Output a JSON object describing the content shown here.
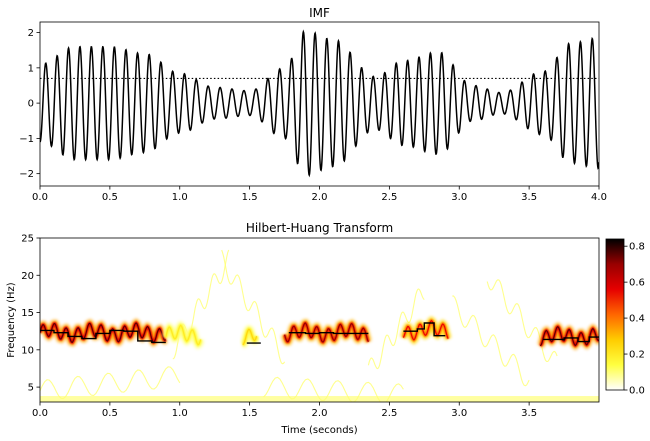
{
  "chart_data": [
    {
      "type": "line",
      "title": "IMF",
      "xlabel": "",
      "ylabel": "",
      "xlim": [
        0.0,
        4.0
      ],
      "ylim": [
        -2.35,
        2.3
      ],
      "x_ticks": [
        "0.0",
        "0.5",
        "1.0",
        "1.5",
        "2.0",
        "2.5",
        "3.0",
        "3.5",
        "4.0"
      ],
      "y_ticks": [
        "−2",
        "−1",
        "0",
        "1",
        "2"
      ],
      "threshold_line": {
        "y": 0.7,
        "style": "dotted"
      },
      "series": [
        {
          "color": "#000000",
          "approx_frequency_hz": 12,
          "envelope": {
            "t": [
              0.0,
              0.25,
              0.5,
              0.75,
              1.0,
              1.25,
              1.5,
              1.75,
              1.9,
              2.1,
              2.4,
              2.6,
              2.85,
              3.1,
              3.3,
              3.6,
              3.8,
              4.0
            ],
            "amplitude": [
              1.1,
              1.6,
              1.6,
              1.4,
              0.85,
              0.45,
              0.35,
              1.0,
              2.05,
              1.8,
              0.75,
              1.2,
              1.45,
              0.5,
              0.3,
              0.9,
              1.7,
              1.85
            ]
          }
        }
      ]
    },
    {
      "type": "heatmap",
      "title": "Hilbert-Huang Transform",
      "xlabel": "Time (seconds)",
      "ylabel": "Frequency (Hz)",
      "xlim": [
        0.0,
        4.0
      ],
      "ylim": [
        3,
        25
      ],
      "x_ticks": [
        "0.0",
        "0.5",
        "1.0",
        "1.5",
        "2.0",
        "2.5",
        "3.0",
        "3.5"
      ],
      "y_ticks": [
        "5",
        "10",
        "15",
        "20",
        "25"
      ],
      "colormap": "hot_r",
      "colorbar": {
        "range": [
          0,
          0.84
        ],
        "ticks": [
          "0.0",
          "0.2",
          "0.4",
          "0.6",
          "0.8"
        ],
        "colors": [
          "#ffffff",
          "#ffff40",
          "#ffcc00",
          "#ff6600",
          "#e60000",
          "#990000",
          "#000000"
        ]
      },
      "ridge_segments": [
        {
          "t_start": 0.0,
          "t_end": 0.9,
          "freq_hz": 12.3,
          "power": 0.75
        },
        {
          "t_start": 0.9,
          "t_end": 1.15,
          "freq_hz": 12.0,
          "power": 0.2
        },
        {
          "t_start": 1.45,
          "t_end": 1.55,
          "freq_hz": 12.0,
          "power": 0.25
        },
        {
          "t_start": 1.75,
          "t_end": 2.35,
          "freq_hz": 12.3,
          "power": 0.7
        },
        {
          "t_start": 2.6,
          "t_end": 2.92,
          "freq_hz": 12.6,
          "power": 0.55
        },
        {
          "t_start": 3.58,
          "t_end": 4.0,
          "freq_hz": 11.8,
          "power": 0.75
        }
      ],
      "median_frequency_steps": [
        {
          "t_start": 0.0,
          "t_end": 0.1,
          "freq_hz": 12.6
        },
        {
          "t_start": 0.1,
          "t_end": 0.2,
          "freq_hz": 12.3
        },
        {
          "t_start": 0.2,
          "t_end": 0.3,
          "freq_hz": 11.8
        },
        {
          "t_start": 0.3,
          "t_end": 0.4,
          "freq_hz": 11.5
        },
        {
          "t_start": 0.4,
          "t_end": 0.5,
          "freq_hz": 12.2
        },
        {
          "t_start": 0.5,
          "t_end": 0.6,
          "freq_hz": 12.6
        },
        {
          "t_start": 0.6,
          "t_end": 0.7,
          "freq_hz": 12.5
        },
        {
          "t_start": 0.7,
          "t_end": 0.8,
          "freq_hz": 11.2
        },
        {
          "t_start": 0.8,
          "t_end": 0.9,
          "freq_hz": 11.0
        },
        {
          "t_start": 1.48,
          "t_end": 1.58,
          "freq_hz": 10.9
        },
        {
          "t_start": 1.78,
          "t_end": 1.9,
          "freq_hz": 12.3
        },
        {
          "t_start": 1.9,
          "t_end": 2.0,
          "freq_hz": 12.2
        },
        {
          "t_start": 2.0,
          "t_end": 2.1,
          "freq_hz": 12.3
        },
        {
          "t_start": 2.1,
          "t_end": 2.2,
          "freq_hz": 12.2
        },
        {
          "t_start": 2.2,
          "t_end": 2.35,
          "freq_hz": 12.2
        },
        {
          "t_start": 2.6,
          "t_end": 2.7,
          "freq_hz": 12.5
        },
        {
          "t_start": 2.7,
          "t_end": 2.75,
          "freq_hz": 12.8
        },
        {
          "t_start": 2.75,
          "t_end": 2.82,
          "freq_hz": 13.6
        },
        {
          "t_start": 2.82,
          "t_end": 2.9,
          "freq_hz": 11.9
        },
        {
          "t_start": 3.6,
          "t_end": 3.75,
          "freq_hz": 11.4
        },
        {
          "t_start": 3.75,
          "t_end": 3.85,
          "freq_hz": 11.6
        },
        {
          "t_start": 3.85,
          "t_end": 3.93,
          "freq_hz": 11.1
        },
        {
          "t_start": 3.93,
          "t_end": 4.0,
          "freq_hz": 11.7
        }
      ]
    }
  ]
}
